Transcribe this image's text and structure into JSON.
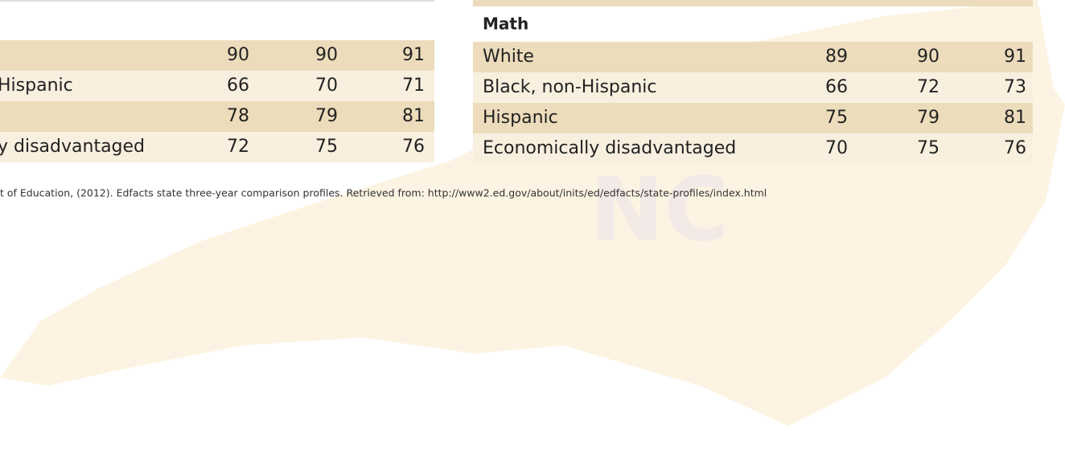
{
  "left_table": {
    "rows": [
      {
        "label": null,
        "values": [
          "90",
          "90",
          "91"
        ]
      },
      {
        "label": "Hispanic",
        "values": [
          "66",
          "70",
          "71"
        ]
      },
      {
        "label": null,
        "values": [
          "78",
          "79",
          "81"
        ]
      },
      {
        "label": "y disadvantaged",
        "values": [
          "72",
          "75",
          "76"
        ]
      }
    ]
  },
  "right_table": {
    "header": "Math",
    "rows": [
      {
        "label": "White",
        "values": [
          "89",
          "90",
          "91"
        ]
      },
      {
        "label": "Black, non-Hispanic",
        "values": [
          "66",
          "72",
          "73"
        ]
      },
      {
        "label": "Hispanic",
        "values": [
          "75",
          "79",
          "81"
        ]
      },
      {
        "label": "Economically disadvantaged",
        "values": [
          "70",
          "75",
          "76"
        ]
      }
    ]
  },
  "watermark": "NC",
  "citation": "t of Education, (2012). Edfacts state three-year comparison profiles. Retrieved from: http://www2.ed.gov/about/inits/ed/edfacts/state-profiles/index.html"
}
